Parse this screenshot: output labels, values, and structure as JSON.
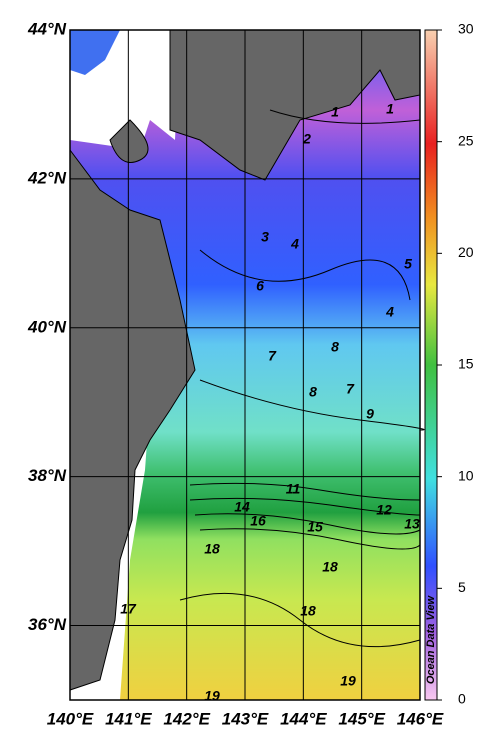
{
  "map": {
    "xlim": [
      140,
      146
    ],
    "ylim": [
      35,
      44
    ],
    "xticks": [
      {
        "value": 140,
        "label": "140°E"
      },
      {
        "value": 141,
        "label": "141°E"
      },
      {
        "value": 142,
        "label": "142°E"
      },
      {
        "value": 143,
        "label": "143°E"
      },
      {
        "value": 144,
        "label": "144°E"
      },
      {
        "value": 145,
        "label": "145°E"
      },
      {
        "value": 146,
        "label": "146°E"
      }
    ],
    "yticks": [
      {
        "value": 36,
        "label": "36°N"
      },
      {
        "value": 38,
        "label": "38°N"
      },
      {
        "value": 40,
        "label": "40°N"
      },
      {
        "value": 42,
        "label": "42°N"
      },
      {
        "value": 44,
        "label": "44°N"
      }
    ],
    "contour_labels": [
      1,
      1,
      2,
      3,
      4,
      5,
      6,
      4,
      8,
      7,
      7,
      8,
      9,
      11,
      14,
      12,
      16,
      15,
      13,
      18,
      18,
      17,
      18,
      19,
      19
    ]
  },
  "colorbar": {
    "lim": [
      0,
      30
    ],
    "ticks": [
      0,
      5,
      10,
      15,
      20,
      25,
      30
    ],
    "credit": "Ocean Data View"
  }
}
